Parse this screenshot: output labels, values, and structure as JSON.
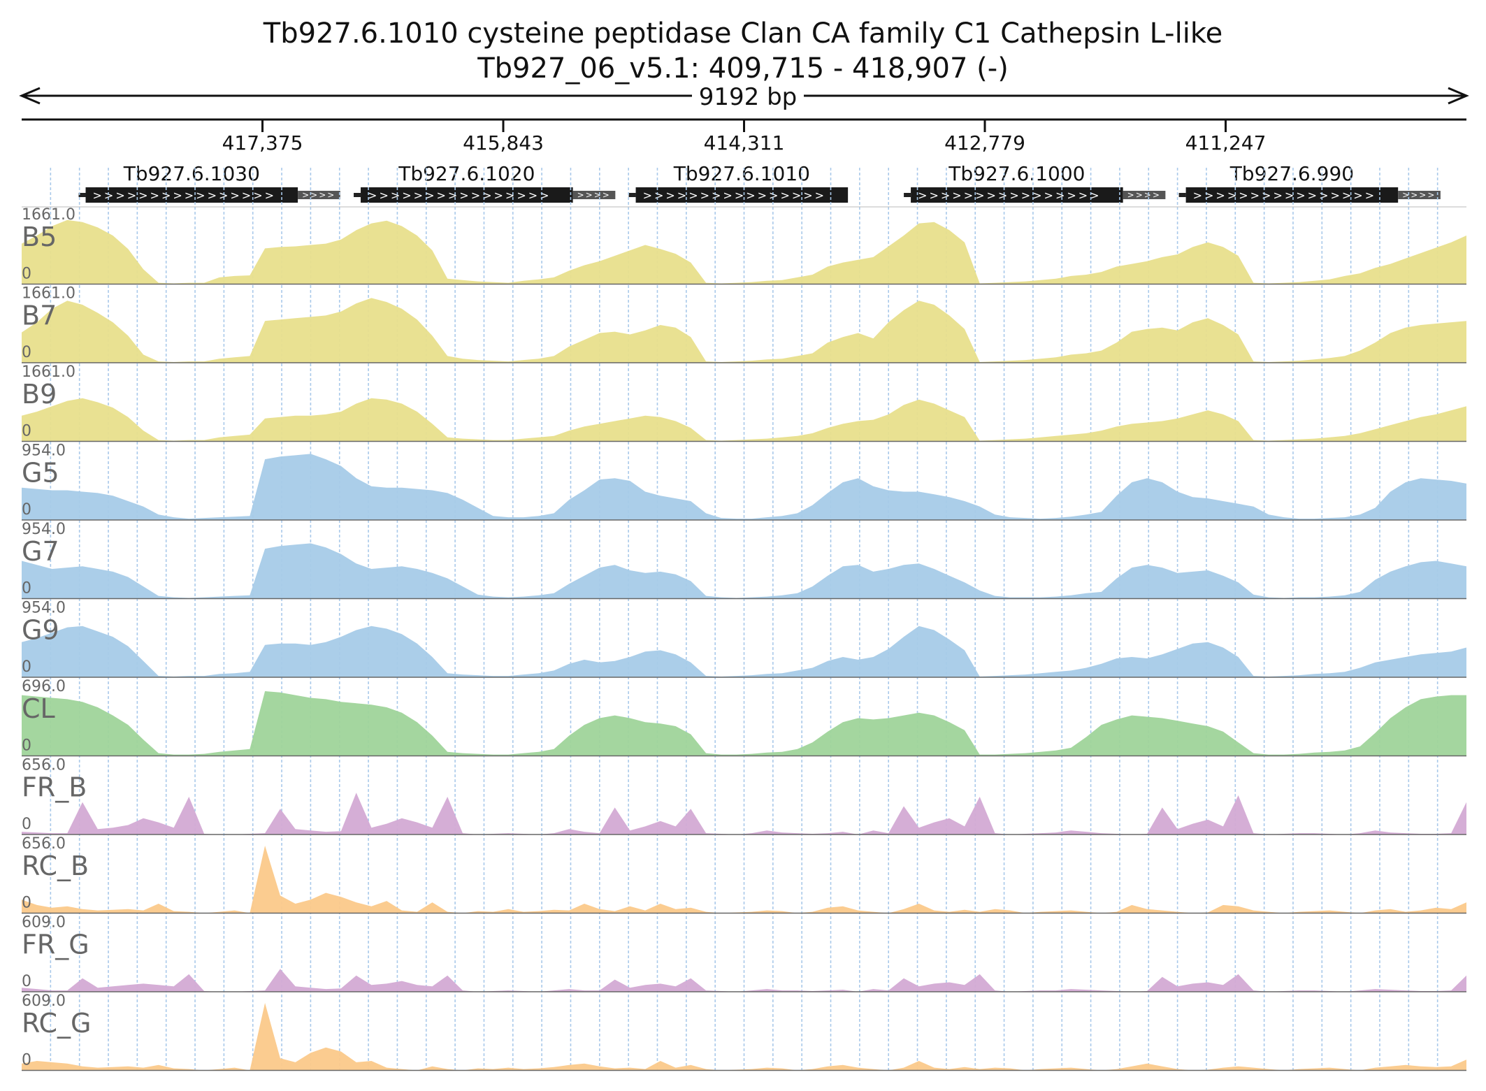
{
  "title": "Tb927.6.1010  cysteine peptidase  Clan CA  family C1  Cathepsin L-like",
  "subtitle": "Tb927_06_v5.1: 409,715 - 418,907 (-)",
  "chart_data": {
    "type": "area",
    "span_label": "9192 bp",
    "region": {
      "chrom": "Tb927_06_v5.1",
      "start": 409715,
      "end": 418907,
      "strand": "-"
    },
    "x_range": [
      418907,
      409715
    ],
    "tick_labels": [
      "417,375",
      "415,843",
      "414,311",
      "412,779",
      "411,247"
    ],
    "genes": [
      {
        "name": "Tb927.6.1030",
        "cds_start": 418500,
        "cds_end": 417150,
        "utr_end": 416880
      },
      {
        "name": "Tb927.6.1020",
        "cds_start": 416750,
        "cds_end": 415400,
        "utr_end": 415130
      },
      {
        "name": "Tb927.6.1010",
        "cds_start": 415000,
        "cds_end": 413650,
        "utr_end": null
      },
      {
        "name": "Tb927.6.1000",
        "cds_start": 413250,
        "cds_end": 411900,
        "utr_end": 411630
      },
      {
        "name": "Tb927.6.990",
        "cds_start": 411500,
        "cds_end": 410150,
        "utr_end": 409880
      }
    ],
    "tracks": [
      {
        "name": "B5",
        "max_label": "1661.0",
        "min_label": "0",
        "color": "#e8df8c",
        "profile": [
          0.6,
          0.72,
          0.86,
          0.95,
          0.92,
          0.84,
          0.72,
          0.52,
          0.22,
          0.02,
          0.01,
          0.02,
          0.02,
          0.1,
          0.12,
          0.13,
          0.53,
          0.55,
          0.56,
          0.58,
          0.6,
          0.66,
          0.8,
          0.9,
          0.94,
          0.86,
          0.72,
          0.5,
          0.08,
          0.06,
          0.04,
          0.03,
          0.02,
          0.05,
          0.07,
          0.1,
          0.2,
          0.28,
          0.34,
          0.42,
          0.5,
          0.58,
          0.52,
          0.45,
          0.32,
          0.02,
          0.01,
          0.02,
          0.03,
          0.05,
          0.06,
          0.1,
          0.14,
          0.26,
          0.32,
          0.36,
          0.4,
          0.56,
          0.72,
          0.9,
          0.92,
          0.8,
          0.62,
          0.01,
          0.02,
          0.03,
          0.04,
          0.06,
          0.08,
          0.12,
          0.14,
          0.18,
          0.26,
          0.3,
          0.34,
          0.4,
          0.44,
          0.55,
          0.62,
          0.55,
          0.42,
          0.02,
          0.01,
          0.02,
          0.03,
          0.05,
          0.07,
          0.12,
          0.16,
          0.24,
          0.3,
          0.38,
          0.46,
          0.54,
          0.62,
          0.72
        ]
      },
      {
        "name": "B7",
        "max_label": "1661.0",
        "min_label": "0",
        "color": "#e8df8c",
        "profile": [
          0.45,
          0.6,
          0.8,
          0.92,
          0.86,
          0.74,
          0.6,
          0.4,
          0.12,
          0.02,
          0.01,
          0.02,
          0.02,
          0.06,
          0.08,
          0.1,
          0.62,
          0.64,
          0.66,
          0.68,
          0.7,
          0.76,
          0.88,
          0.96,
          0.9,
          0.8,
          0.64,
          0.4,
          0.1,
          0.06,
          0.04,
          0.03,
          0.02,
          0.04,
          0.06,
          0.1,
          0.24,
          0.34,
          0.44,
          0.46,
          0.42,
          0.48,
          0.56,
          0.52,
          0.38,
          0.02,
          0.01,
          0.02,
          0.03,
          0.05,
          0.06,
          0.1,
          0.14,
          0.3,
          0.38,
          0.44,
          0.36,
          0.6,
          0.78,
          0.92,
          0.86,
          0.7,
          0.5,
          0.01,
          0.02,
          0.03,
          0.04,
          0.06,
          0.08,
          0.12,
          0.14,
          0.18,
          0.3,
          0.46,
          0.5,
          0.52,
          0.48,
          0.6,
          0.66,
          0.56,
          0.42,
          0.02,
          0.01,
          0.02,
          0.03,
          0.05,
          0.07,
          0.1,
          0.18,
          0.3,
          0.44,
          0.52,
          0.56,
          0.58,
          0.6,
          0.62
        ]
      },
      {
        "name": "B9",
        "max_label": "1661.0",
        "min_label": "0",
        "color": "#e8df8c",
        "profile": [
          0.38,
          0.44,
          0.52,
          0.6,
          0.64,
          0.58,
          0.5,
          0.36,
          0.16,
          0.02,
          0.01,
          0.02,
          0.02,
          0.06,
          0.08,
          0.1,
          0.34,
          0.36,
          0.38,
          0.38,
          0.4,
          0.44,
          0.56,
          0.64,
          0.62,
          0.56,
          0.44,
          0.26,
          0.06,
          0.04,
          0.03,
          0.02,
          0.02,
          0.04,
          0.06,
          0.08,
          0.16,
          0.22,
          0.26,
          0.3,
          0.34,
          0.38,
          0.36,
          0.3,
          0.2,
          0.02,
          0.01,
          0.02,
          0.03,
          0.04,
          0.06,
          0.08,
          0.12,
          0.2,
          0.26,
          0.3,
          0.32,
          0.4,
          0.54,
          0.62,
          0.56,
          0.46,
          0.36,
          0.01,
          0.02,
          0.03,
          0.04,
          0.06,
          0.08,
          0.1,
          0.12,
          0.16,
          0.22,
          0.26,
          0.28,
          0.3,
          0.34,
          0.4,
          0.46,
          0.4,
          0.3,
          0.02,
          0.01,
          0.02,
          0.03,
          0.04,
          0.06,
          0.08,
          0.12,
          0.18,
          0.24,
          0.3,
          0.36,
          0.4,
          0.46,
          0.52
        ]
      },
      {
        "name": "G5",
        "max_label": "954.0",
        "min_label": "0",
        "color": "#a6cbe8",
        "profile": [
          0.48,
          0.46,
          0.44,
          0.44,
          0.42,
          0.4,
          0.36,
          0.28,
          0.2,
          0.08,
          0.04,
          0.02,
          0.03,
          0.04,
          0.05,
          0.06,
          0.9,
          0.94,
          0.96,
          0.98,
          0.9,
          0.8,
          0.62,
          0.5,
          0.48,
          0.48,
          0.46,
          0.44,
          0.4,
          0.3,
          0.18,
          0.06,
          0.04,
          0.04,
          0.06,
          0.1,
          0.3,
          0.44,
          0.6,
          0.62,
          0.58,
          0.42,
          0.36,
          0.32,
          0.28,
          0.1,
          0.03,
          0.02,
          0.02,
          0.04,
          0.06,
          0.1,
          0.22,
          0.4,
          0.56,
          0.62,
          0.5,
          0.44,
          0.42,
          0.42,
          0.38,
          0.34,
          0.28,
          0.2,
          0.08,
          0.04,
          0.03,
          0.02,
          0.03,
          0.05,
          0.08,
          0.12,
          0.36,
          0.56,
          0.62,
          0.56,
          0.42,
          0.34,
          0.32,
          0.28,
          0.24,
          0.2,
          0.08,
          0.04,
          0.02,
          0.02,
          0.03,
          0.04,
          0.08,
          0.18,
          0.42,
          0.56,
          0.62,
          0.6,
          0.58,
          0.54
        ]
      },
      {
        "name": "G7",
        "max_label": "954.0",
        "min_label": "0",
        "color": "#a6cbe8",
        "profile": [
          0.56,
          0.5,
          0.44,
          0.46,
          0.48,
          0.44,
          0.4,
          0.32,
          0.18,
          0.04,
          0.02,
          0.01,
          0.02,
          0.03,
          0.04,
          0.05,
          0.74,
          0.78,
          0.8,
          0.82,
          0.76,
          0.66,
          0.52,
          0.44,
          0.46,
          0.48,
          0.44,
          0.38,
          0.3,
          0.18,
          0.06,
          0.03,
          0.02,
          0.03,
          0.05,
          0.08,
          0.22,
          0.34,
          0.46,
          0.5,
          0.42,
          0.38,
          0.4,
          0.36,
          0.26,
          0.04,
          0.02,
          0.01,
          0.02,
          0.03,
          0.05,
          0.08,
          0.18,
          0.34,
          0.48,
          0.5,
          0.4,
          0.44,
          0.5,
          0.52,
          0.44,
          0.34,
          0.24,
          0.12,
          0.04,
          0.02,
          0.02,
          0.02,
          0.03,
          0.05,
          0.08,
          0.1,
          0.3,
          0.46,
          0.5,
          0.46,
          0.38,
          0.4,
          0.42,
          0.34,
          0.24,
          0.06,
          0.02,
          0.01,
          0.02,
          0.02,
          0.03,
          0.05,
          0.1,
          0.28,
          0.4,
          0.48,
          0.54,
          0.56,
          0.52,
          0.48
        ]
      },
      {
        "name": "G9",
        "max_label": "954.0",
        "min_label": "0",
        "color": "#a6cbe8",
        "profile": [
          0.52,
          0.58,
          0.66,
          0.74,
          0.76,
          0.68,
          0.6,
          0.46,
          0.24,
          0.02,
          0.01,
          0.02,
          0.02,
          0.05,
          0.06,
          0.08,
          0.48,
          0.5,
          0.5,
          0.48,
          0.52,
          0.6,
          0.7,
          0.76,
          0.72,
          0.64,
          0.5,
          0.3,
          0.06,
          0.04,
          0.03,
          0.02,
          0.02,
          0.04,
          0.06,
          0.1,
          0.2,
          0.26,
          0.22,
          0.24,
          0.3,
          0.38,
          0.4,
          0.34,
          0.22,
          0.02,
          0.01,
          0.02,
          0.03,
          0.05,
          0.06,
          0.1,
          0.14,
          0.24,
          0.3,
          0.26,
          0.3,
          0.42,
          0.6,
          0.76,
          0.7,
          0.56,
          0.4,
          0.01,
          0.02,
          0.03,
          0.04,
          0.06,
          0.08,
          0.1,
          0.14,
          0.2,
          0.28,
          0.3,
          0.28,
          0.34,
          0.42,
          0.5,
          0.52,
          0.44,
          0.3,
          0.02,
          0.01,
          0.02,
          0.03,
          0.05,
          0.06,
          0.08,
          0.14,
          0.22,
          0.26,
          0.3,
          0.34,
          0.36,
          0.38,
          0.44
        ]
      },
      {
        "name": "CL",
        "max_label": "696.0",
        "min_label": "0",
        "color": "#9fd49a",
        "profile": [
          0.9,
          0.88,
          0.86,
          0.84,
          0.8,
          0.72,
          0.6,
          0.46,
          0.24,
          0.04,
          0.02,
          0.02,
          0.03,
          0.06,
          0.08,
          0.1,
          0.96,
          0.94,
          0.9,
          0.86,
          0.84,
          0.8,
          0.78,
          0.76,
          0.72,
          0.64,
          0.5,
          0.3,
          0.06,
          0.04,
          0.03,
          0.02,
          0.02,
          0.04,
          0.06,
          0.1,
          0.3,
          0.46,
          0.56,
          0.6,
          0.56,
          0.5,
          0.48,
          0.44,
          0.32,
          0.04,
          0.02,
          0.02,
          0.03,
          0.05,
          0.06,
          0.1,
          0.2,
          0.36,
          0.5,
          0.56,
          0.54,
          0.56,
          0.6,
          0.64,
          0.6,
          0.5,
          0.38,
          0.02,
          0.02,
          0.03,
          0.04,
          0.06,
          0.08,
          0.12,
          0.28,
          0.46,
          0.54,
          0.6,
          0.58,
          0.56,
          0.52,
          0.48,
          0.44,
          0.36,
          0.2,
          0.04,
          0.02,
          0.02,
          0.03,
          0.05,
          0.06,
          0.08,
          0.14,
          0.34,
          0.56,
          0.72,
          0.84,
          0.88,
          0.9,
          0.9
        ]
      },
      {
        "name": "FR_B",
        "max_label": "656.0",
        "min_label": "0",
        "color": "#d3aad4",
        "profile": [
          0.04,
          0.03,
          0.02,
          0.02,
          0.48,
          0.08,
          0.1,
          0.14,
          0.24,
          0.18,
          0.1,
          0.56,
          0.01,
          0.0,
          0.0,
          0.01,
          0.02,
          0.38,
          0.08,
          0.06,
          0.04,
          0.05,
          0.62,
          0.1,
          0.16,
          0.24,
          0.18,
          0.1,
          0.56,
          0.02,
          0.0,
          0.01,
          0.02,
          0.01,
          0.0,
          0.02,
          0.08,
          0.04,
          0.02,
          0.4,
          0.06,
          0.12,
          0.2,
          0.12,
          0.38,
          0.02,
          0.01,
          0.0,
          0.02,
          0.06,
          0.03,
          0.02,
          0.01,
          0.02,
          0.04,
          0.0,
          0.06,
          0.02,
          0.42,
          0.1,
          0.18,
          0.24,
          0.12,
          0.56,
          0.02,
          0.0,
          0.01,
          0.02,
          0.03,
          0.06,
          0.04,
          0.02,
          0.01,
          0.0,
          0.01,
          0.4,
          0.08,
          0.16,
          0.22,
          0.12,
          0.58,
          0.02,
          0.0,
          0.01,
          0.02,
          0.02,
          0.01,
          0.0,
          0.02,
          0.06,
          0.03,
          0.02,
          0.01,
          0.01,
          0.02,
          0.48
        ]
      },
      {
        "name": "RC_B",
        "max_label": "656.0",
        "min_label": "0",
        "color": "#fbc98a",
        "profile": [
          0.2,
          0.12,
          0.08,
          0.1,
          0.06,
          0.04,
          0.05,
          0.06,
          0.04,
          0.14,
          0.03,
          0.02,
          0.0,
          0.02,
          0.04,
          0.0,
          1.0,
          0.26,
          0.14,
          0.2,
          0.3,
          0.24,
          0.16,
          0.1,
          0.18,
          0.04,
          0.02,
          0.16,
          0.02,
          0.0,
          0.03,
          0.02,
          0.06,
          0.02,
          0.03,
          0.05,
          0.04,
          0.14,
          0.06,
          0.03,
          0.1,
          0.04,
          0.14,
          0.06,
          0.08,
          0.02,
          0.0,
          0.01,
          0.02,
          0.04,
          0.03,
          0.0,
          0.02,
          0.08,
          0.1,
          0.04,
          0.02,
          0.0,
          0.06,
          0.14,
          0.04,
          0.02,
          0.05,
          0.02,
          0.06,
          0.04,
          0.0,
          0.02,
          0.03,
          0.04,
          0.02,
          0.0,
          0.02,
          0.12,
          0.06,
          0.04,
          0.02,
          0.0,
          0.01,
          0.12,
          0.1,
          0.04,
          0.02,
          0.0,
          0.02,
          0.03,
          0.04,
          0.02,
          0.0,
          0.04,
          0.06,
          0.02,
          0.04,
          0.08,
          0.06,
          0.16
        ]
      },
      {
        "name": "FR_G",
        "max_label": "609.0",
        "min_label": "0",
        "color": "#d3aad4",
        "profile": [
          0.06,
          0.04,
          0.02,
          0.02,
          0.2,
          0.06,
          0.08,
          0.1,
          0.12,
          0.1,
          0.08,
          0.26,
          0.01,
          0.0,
          0.0,
          0.01,
          0.02,
          0.34,
          0.08,
          0.06,
          0.04,
          0.05,
          0.24,
          0.1,
          0.12,
          0.16,
          0.1,
          0.08,
          0.24,
          0.02,
          0.0,
          0.01,
          0.02,
          0.01,
          0.0,
          0.02,
          0.04,
          0.02,
          0.02,
          0.18,
          0.06,
          0.1,
          0.12,
          0.08,
          0.2,
          0.02,
          0.01,
          0.0,
          0.02,
          0.04,
          0.02,
          0.02,
          0.01,
          0.02,
          0.03,
          0.0,
          0.04,
          0.02,
          0.2,
          0.08,
          0.12,
          0.14,
          0.1,
          0.26,
          0.02,
          0.0,
          0.01,
          0.02,
          0.02,
          0.04,
          0.03,
          0.02,
          0.01,
          0.0,
          0.01,
          0.22,
          0.08,
          0.12,
          0.14,
          0.1,
          0.26,
          0.02,
          0.0,
          0.01,
          0.02,
          0.02,
          0.01,
          0.0,
          0.02,
          0.04,
          0.03,
          0.02,
          0.01,
          0.01,
          0.02,
          0.24
        ]
      },
      {
        "name": "RC_G",
        "max_label": "609.0",
        "min_label": "0",
        "color": "#fbc98a",
        "profile": [
          0.1,
          0.14,
          0.12,
          0.1,
          0.06,
          0.04,
          0.05,
          0.06,
          0.04,
          0.08,
          0.03,
          0.02,
          0.0,
          0.02,
          0.04,
          0.0,
          1.0,
          0.18,
          0.12,
          0.26,
          0.34,
          0.28,
          0.12,
          0.14,
          0.04,
          0.02,
          0.0,
          0.06,
          0.02,
          0.0,
          0.03,
          0.02,
          0.04,
          0.02,
          0.03,
          0.05,
          0.08,
          0.1,
          0.06,
          0.03,
          0.04,
          0.02,
          0.14,
          0.04,
          0.08,
          0.02,
          0.0,
          0.01,
          0.02,
          0.04,
          0.03,
          0.0,
          0.02,
          0.06,
          0.08,
          0.04,
          0.02,
          0.0,
          0.04,
          0.14,
          0.04,
          0.02,
          0.05,
          0.02,
          0.04,
          0.03,
          0.0,
          0.02,
          0.03,
          0.04,
          0.02,
          0.0,
          0.02,
          0.06,
          0.1,
          0.06,
          0.02,
          0.0,
          0.01,
          0.04,
          0.06,
          0.04,
          0.02,
          0.0,
          0.02,
          0.03,
          0.04,
          0.02,
          0.0,
          0.04,
          0.06,
          0.08,
          0.06,
          0.05,
          0.06,
          0.16
        ]
      }
    ]
  }
}
